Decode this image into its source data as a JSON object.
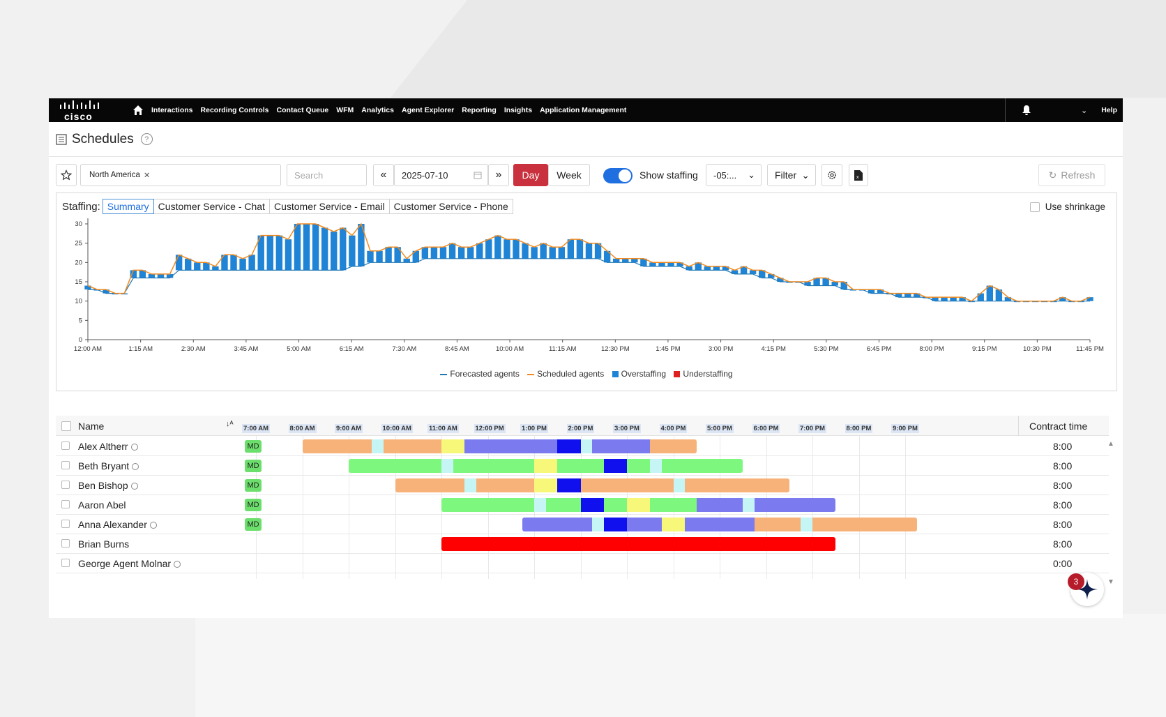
{
  "nav": {
    "logo": "cisco",
    "items": [
      "Interactions",
      "Recording Controls",
      "Contact Queue",
      "WFM",
      "Analytics",
      "Agent Explorer",
      "Reporting",
      "Insights",
      "Application Management"
    ],
    "help": "Help"
  },
  "page": {
    "title": "Schedules",
    "help_glyph": "?"
  },
  "toolbar": {
    "region_chip": "North America",
    "search_placeholder": "Search",
    "date": "2025-07-10",
    "day": "Day",
    "week": "Week",
    "show_staffing": "Show staffing",
    "timezone": "-05:...",
    "filter": "Filter",
    "refresh": "Refresh"
  },
  "staffing": {
    "label": "Staffing:",
    "tabs": [
      "Summary",
      "Customer Service - Chat",
      "Customer Service - Email",
      "Customer Service - Phone"
    ],
    "active_tab": 0,
    "use_shrinkage": "Use shrinkage"
  },
  "chart_data": {
    "type": "bar",
    "x_tick_labels": [
      "12:00 AM",
      "1:15 AM",
      "2:30 AM",
      "3:45 AM",
      "5:00 AM",
      "6:15 AM",
      "7:30 AM",
      "8:45 AM",
      "10:00 AM",
      "11:15 AM",
      "12:30 PM",
      "1:45 PM",
      "3:00 PM",
      "4:15 PM",
      "5:30 PM",
      "6:45 PM",
      "8:00 PM",
      "9:15 PM",
      "10:30 PM",
      "11:45 PM"
    ],
    "y_ticks": [
      0,
      5,
      10,
      15,
      20,
      25,
      30
    ],
    "ylim": [
      0,
      30
    ],
    "scheduled_agents": [
      14,
      13,
      13,
      12,
      12,
      18,
      18,
      17,
      17,
      17,
      22,
      21,
      20,
      20,
      19,
      22,
      22,
      21,
      22,
      27,
      27,
      27,
      26,
      30,
      30,
      30,
      29,
      28,
      29,
      27,
      30,
      23,
      23,
      24,
      24,
      21,
      23,
      24,
      24,
      24,
      25,
      24,
      24,
      25,
      26,
      27,
      26,
      26,
      25,
      24,
      25,
      24,
      24,
      26,
      26,
      25,
      25,
      23,
      21,
      21,
      21,
      21,
      20,
      20,
      20,
      20,
      19,
      20,
      19,
      19,
      19,
      18,
      19,
      18,
      18,
      17,
      16,
      15,
      15,
      15,
      16,
      16,
      15,
      15,
      13,
      13,
      13,
      13,
      12,
      12,
      12,
      12,
      11,
      11,
      11,
      11,
      11,
      10,
      12,
      14,
      13,
      11,
      10,
      10,
      10,
      10,
      10,
      11,
      10,
      10,
      11
    ],
    "forecasted_agents": [
      13,
      13,
      12,
      12,
      12,
      16,
      16,
      16,
      16,
      16,
      18,
      18,
      18,
      18,
      18,
      18,
      18,
      18,
      18,
      18,
      18,
      18,
      18,
      18,
      18,
      18,
      18,
      18,
      18,
      19,
      19,
      20,
      20,
      20,
      20,
      20,
      20,
      21,
      21,
      21,
      21,
      21,
      21,
      21,
      21,
      21,
      21,
      21,
      21,
      21,
      21,
      21,
      21,
      21,
      21,
      21,
      21,
      20,
      20,
      20,
      20,
      19,
      19,
      19,
      19,
      19,
      18,
      18,
      18,
      18,
      18,
      17,
      17,
      17,
      16,
      16,
      15,
      15,
      15,
      14,
      14,
      14,
      14,
      13,
      13,
      13,
      12,
      12,
      12,
      11,
      11,
      11,
      11,
      10,
      10,
      10,
      10,
      10,
      10,
      10,
      10,
      10,
      10,
      10,
      10,
      10,
      10,
      10,
      10,
      10,
      10
    ],
    "legend": [
      "Forecasted agents",
      "Scheduled agents",
      "Overstaffing",
      "Understaffing"
    ],
    "colors": {
      "forecasted": "#1f77b4",
      "scheduled": "#f28a1e",
      "overstaffing": "#1f84d6",
      "understaffing": "#e02020"
    }
  },
  "grid": {
    "name_header": "Name",
    "contract_header": "Contract time",
    "hours": [
      "7:00 AM",
      "8:00 AM",
      "9:00 AM",
      "10:00 AM",
      "11:00 AM",
      "12:00 PM",
      "1:00 PM",
      "2:00 PM",
      "3:00 PM",
      "4:00 PM",
      "5:00 PM",
      "6:00 PM",
      "7:00 PM",
      "8:00 PM",
      "9:00 PM"
    ],
    "rows": [
      {
        "name": "Alex Altherr",
        "globe": true,
        "badge": "MD",
        "contract": "8:00",
        "segments": [
          {
            "s": 8.0,
            "e": 9.5,
            "c": "#f7b27a"
          },
          {
            "s": 9.5,
            "e": 9.75,
            "c": "#c6f5f5"
          },
          {
            "s": 9.75,
            "e": 11.0,
            "c": "#f7b27a"
          },
          {
            "s": 11.0,
            "e": 11.5,
            "c": "#f7f77a"
          },
          {
            "s": 11.5,
            "e": 13.5,
            "c": "#7b7bef"
          },
          {
            "s": 13.5,
            "e": 14.0,
            "c": "#1010ef"
          },
          {
            "s": 14.0,
            "e": 14.25,
            "c": "#c6f5f5"
          },
          {
            "s": 14.25,
            "e": 15.5,
            "c": "#7b7bef"
          },
          {
            "s": 15.5,
            "e": 16.5,
            "c": "#f7b27a"
          }
        ]
      },
      {
        "name": "Beth Bryant",
        "globe": true,
        "badge": "MD",
        "contract": "8:00",
        "segments": [
          {
            "s": 9.0,
            "e": 11.0,
            "c": "#7ef77e"
          },
          {
            "s": 11.0,
            "e": 11.25,
            "c": "#c6f5f5"
          },
          {
            "s": 11.25,
            "e": 13.0,
            "c": "#7ef77e"
          },
          {
            "s": 13.0,
            "e": 13.5,
            "c": "#f7f77a"
          },
          {
            "s": 13.5,
            "e": 14.5,
            "c": "#7ef77e"
          },
          {
            "s": 14.5,
            "e": 15.0,
            "c": "#1010ef"
          },
          {
            "s": 15.0,
            "e": 15.5,
            "c": "#7ef77e"
          },
          {
            "s": 15.5,
            "e": 15.75,
            "c": "#c6f5f5"
          },
          {
            "s": 15.75,
            "e": 17.5,
            "c": "#7ef77e"
          }
        ]
      },
      {
        "name": "Ben Bishop",
        "globe": true,
        "badge": "MD",
        "contract": "8:00",
        "segments": [
          {
            "s": 10.0,
            "e": 11.5,
            "c": "#f7b27a"
          },
          {
            "s": 11.5,
            "e": 11.75,
            "c": "#c6f5f5"
          },
          {
            "s": 11.75,
            "e": 13.0,
            "c": "#f7b27a"
          },
          {
            "s": 13.0,
            "e": 13.5,
            "c": "#f7f77a"
          },
          {
            "s": 13.5,
            "e": 14.0,
            "c": "#1010ef"
          },
          {
            "s": 14.0,
            "e": 16.0,
            "c": "#f7b27a"
          },
          {
            "s": 16.0,
            "e": 16.25,
            "c": "#c6f5f5"
          },
          {
            "s": 16.25,
            "e": 18.5,
            "c": "#f7b27a"
          }
        ]
      },
      {
        "name": "Aaron Abel",
        "globe": false,
        "badge": "MD",
        "contract": "8:00",
        "segments": [
          {
            "s": 11.0,
            "e": 13.0,
            "c": "#7ef77e"
          },
          {
            "s": 13.0,
            "e": 13.25,
            "c": "#c6f5f5"
          },
          {
            "s": 13.25,
            "e": 14.0,
            "c": "#7ef77e"
          },
          {
            "s": 14.0,
            "e": 14.5,
            "c": "#1010ef"
          },
          {
            "s": 14.5,
            "e": 15.0,
            "c": "#7ef77e"
          },
          {
            "s": 15.0,
            "e": 15.5,
            "c": "#f7f77a"
          },
          {
            "s": 15.5,
            "e": 16.5,
            "c": "#7ef77e"
          },
          {
            "s": 16.5,
            "e": 17.5,
            "c": "#7b7bef"
          },
          {
            "s": 17.5,
            "e": 17.75,
            "c": "#c6f5f5"
          },
          {
            "s": 17.75,
            "e": 19.5,
            "c": "#7b7bef"
          }
        ]
      },
      {
        "name": "Anna Alexander",
        "globe": true,
        "badge": "MD",
        "contract": "8:00",
        "segments": [
          {
            "s": 12.75,
            "e": 14.25,
            "c": "#7b7bef"
          },
          {
            "s": 14.25,
            "e": 14.5,
            "c": "#c6f5f5"
          },
          {
            "s": 14.5,
            "e": 15.0,
            "c": "#1010ef"
          },
          {
            "s": 15.0,
            "e": 15.75,
            "c": "#7b7bef"
          },
          {
            "s": 15.75,
            "e": 16.25,
            "c": "#f7f77a"
          },
          {
            "s": 16.25,
            "e": 17.75,
            "c": "#7b7bef"
          },
          {
            "s": 17.75,
            "e": 18.75,
            "c": "#f7b27a"
          },
          {
            "s": 18.75,
            "e": 19.0,
            "c": "#c6f5f5"
          },
          {
            "s": 19.0,
            "e": 21.25,
            "c": "#f7b27a"
          }
        ]
      },
      {
        "name": "Brian Burns",
        "globe": false,
        "badge": "",
        "contract": "8:00",
        "segments": [
          {
            "s": 11.0,
            "e": 19.5,
            "c": "#ff0000"
          }
        ]
      },
      {
        "name": "George Agent Molnar",
        "globe": true,
        "badge": "",
        "contract": "0:00",
        "segments": []
      }
    ]
  },
  "notification_count": "3"
}
